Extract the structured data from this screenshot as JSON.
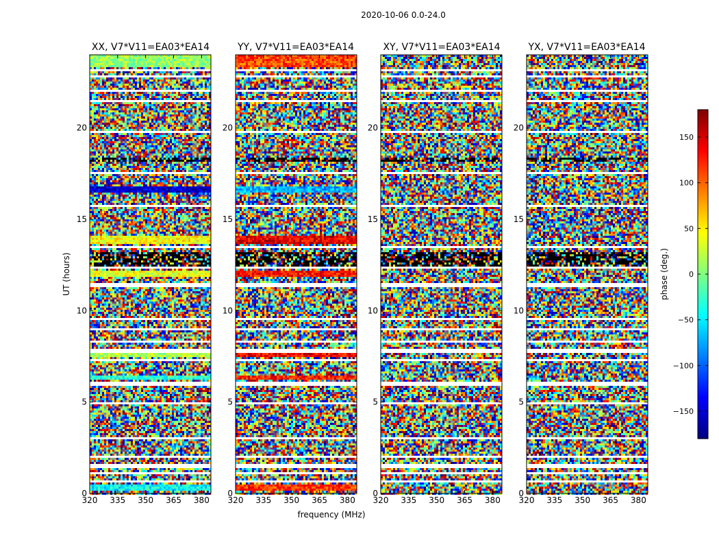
{
  "chart_data": {
    "type": "heatmap",
    "title": "2020-10-06 0.0-24.0",
    "xlabel": "frequency (MHz)",
    "ylabel": "UT (hours)",
    "xlim": [
      320,
      385
    ],
    "ylim": [
      0,
      24
    ],
    "x_ticks": [
      320,
      335,
      350,
      365,
      380
    ],
    "y_ticks": [
      0,
      5,
      10,
      15,
      20
    ],
    "panels": [
      {
        "title": "XX, V7*V11=EA03*EA14"
      },
      {
        "title": "YY, V7*V11=EA03*EA14"
      },
      {
        "title": "XY, V7*V11=EA03*EA14"
      },
      {
        "title": "YX, V7*V11=EA03*EA14"
      }
    ],
    "colorbar": {
      "label": "phase (deg.)",
      "range": [
        -180,
        180
      ],
      "ticks": [
        -150,
        -100,
        -50,
        0,
        50,
        100,
        150
      ],
      "tick_labels": [
        "−150",
        "−100",
        "−50",
        "0",
        "50",
        "100",
        "150"
      ],
      "colormap": "jet"
    }
  }
}
